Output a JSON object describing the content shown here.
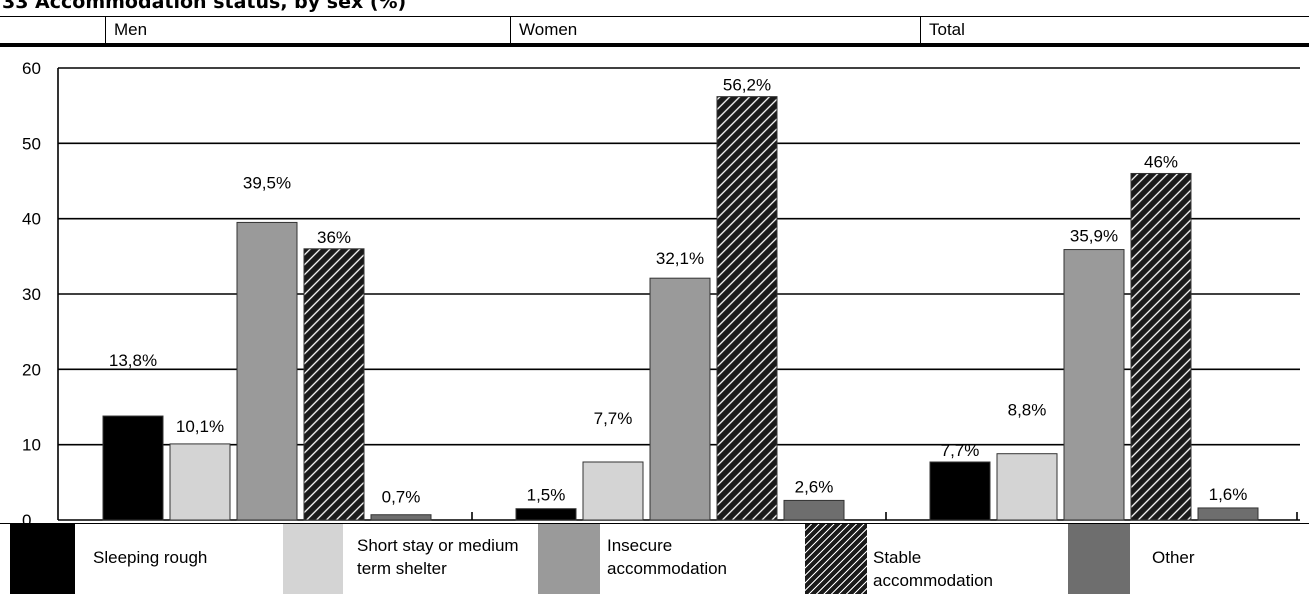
{
  "title": "33  Accommodation status, by sex (%)",
  "header": {
    "groups": [
      "Men",
      "Women",
      "Total"
    ]
  },
  "colors": {
    "sleeping_rough": "#000000",
    "short_stay": "#d4d4d4",
    "insecure": "#9a9a9a",
    "stable": "#1a1a1a",
    "other": "#6e6e6e"
  },
  "legend": [
    {
      "label": "Sleeping rough"
    },
    {
      "label": "Short stay or medium term shelter"
    },
    {
      "label": "Insecure accommodation"
    },
    {
      "label": "Stable accommodation"
    },
    {
      "label": "Other"
    }
  ],
  "chart_data": {
    "type": "bar",
    "categories": [
      "Men",
      "Women",
      "Total"
    ],
    "ylim": [
      0,
      60
    ],
    "yticks": [
      "0",
      "10",
      "20",
      "30",
      "40",
      "50",
      "60"
    ],
    "grid": true,
    "series": [
      {
        "name": "Sleeping rough",
        "values": [
          13.8,
          1.5,
          7.7
        ],
        "labels": [
          "13,8%",
          "1,5%",
          "7,7%"
        ]
      },
      {
        "name": "Short stay or medium term shelter",
        "values": [
          10.1,
          7.7,
          8.8
        ],
        "labels": [
          "10,1%",
          "7,7%",
          "8,8%"
        ]
      },
      {
        "name": "Insecure accommodation",
        "values": [
          39.5,
          32.1,
          35.9
        ],
        "labels": [
          "39,5%",
          "32,1%",
          "35,9%"
        ]
      },
      {
        "name": "Stable accommodation",
        "values": [
          36,
          56.2,
          46
        ],
        "labels": [
          "36%",
          "56,2%",
          "46%"
        ]
      },
      {
        "name": "Other",
        "values": [
          0.7,
          2.6,
          1.6
        ],
        "labels": [
          "0,7%",
          "2,6%",
          "1,6%"
        ]
      }
    ]
  }
}
